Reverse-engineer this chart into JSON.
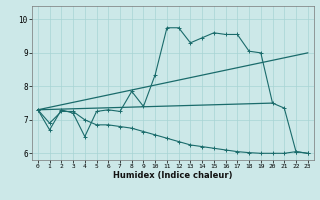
{
  "title": "",
  "xlabel": "Humidex (Indice chaleur)",
  "bg_color": "#cce8e8",
  "line_color": "#1a6b6b",
  "xlim": [
    -0.5,
    23.5
  ],
  "ylim": [
    5.8,
    10.4
  ],
  "yticks": [
    6,
    7,
    8,
    9,
    10
  ],
  "xticks": [
    0,
    1,
    2,
    3,
    4,
    5,
    6,
    7,
    8,
    9,
    10,
    11,
    12,
    13,
    14,
    15,
    16,
    17,
    18,
    19,
    20,
    21,
    22,
    23
  ],
  "line1_x": [
    0,
    1,
    2,
    3,
    4,
    5,
    6,
    7,
    8,
    9,
    10,
    11,
    12,
    13,
    14,
    15,
    16,
    17,
    18,
    19,
    20,
    21,
    22,
    23
  ],
  "line1_y": [
    7.3,
    6.7,
    7.3,
    7.2,
    6.5,
    7.25,
    7.3,
    7.25,
    7.85,
    7.4,
    8.35,
    9.75,
    9.75,
    9.3,
    9.45,
    9.6,
    9.55,
    9.55,
    9.05,
    9.0,
    7.5,
    7.35,
    6.05,
    6.0
  ],
  "line2_x": [
    0,
    1,
    2,
    3,
    4,
    5,
    6,
    7,
    8,
    9,
    10,
    11,
    12,
    13,
    14,
    15,
    16,
    17,
    18,
    19,
    20,
    21,
    22,
    23
  ],
  "line2_y": [
    7.3,
    6.9,
    7.25,
    7.25,
    7.0,
    6.85,
    6.85,
    6.8,
    6.75,
    6.65,
    6.55,
    6.45,
    6.35,
    6.25,
    6.2,
    6.15,
    6.1,
    6.05,
    6.02,
    6.0,
    6.0,
    6.0,
    6.05,
    6.0
  ],
  "line3_x": [
    0,
    23
  ],
  "line3_y": [
    7.3,
    9.0
  ],
  "line4_x": [
    0,
    20
  ],
  "line4_y": [
    7.3,
    7.5
  ]
}
